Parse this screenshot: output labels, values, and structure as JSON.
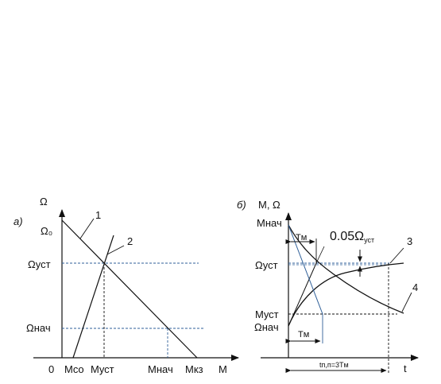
{
  "left": {
    "panel_label": "а)",
    "y_axis_label": "Ω",
    "x_axis_label": "M",
    "y_ticks": {
      "omega0": "Ω₀",
      "omega_ust": "Ωуст",
      "omega_nach": "Ωнач"
    },
    "x_ticks": {
      "zero": "0",
      "mco": "Mco",
      "must": "Mуст",
      "mnach": "Mнач",
      "mkz": "Mкз"
    },
    "curve_labels": {
      "c1": "1",
      "c2": "2"
    }
  },
  "right": {
    "panel_label": "б)",
    "y_axis_label": "M, Ω",
    "x_axis_label": "t",
    "y_ticks": {
      "mnach": "Mнач",
      "omega_ust": "Ωуст",
      "must": "Mуст",
      "omega_nach": "Ωнач"
    },
    "annotations": {
      "tm_top": "Tм",
      "tm_bottom": "Tм",
      "tolerance_main": "0.05Ω",
      "tolerance_sub": "уст",
      "tp": "tп,п=3Tм"
    },
    "curve_labels": {
      "c3": "3",
      "c4": "4"
    }
  },
  "colors": {
    "ink": "#111111",
    "dashed": "#2f5f98"
  }
}
